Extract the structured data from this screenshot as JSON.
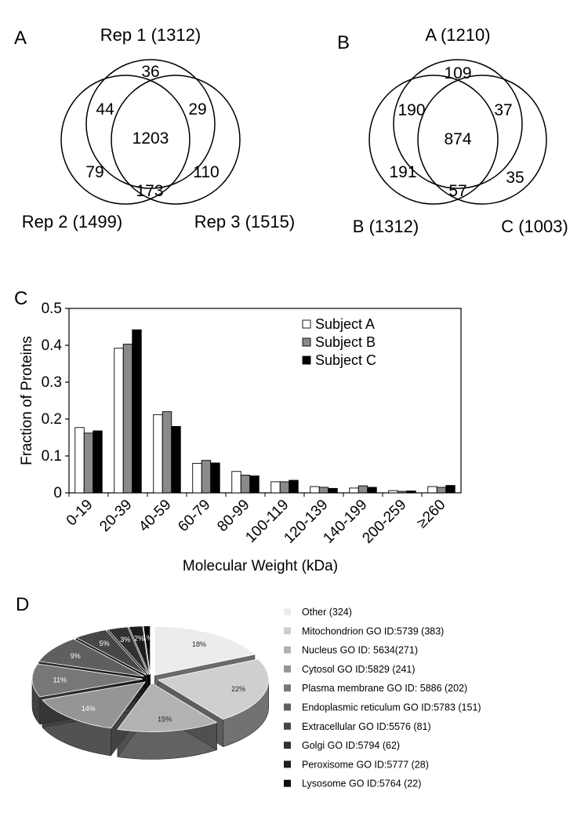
{
  "panels": {
    "a": {
      "letter": "A",
      "sets": [
        "Rep 1 (1312)",
        "Rep 2 (1499)",
        "Rep 3 (1515)"
      ],
      "regions": {
        "top_only": "36",
        "top_left": "44",
        "top_right": "29",
        "center": "1203",
        "left_only": "79",
        "bottom_middle": "173",
        "right_only": "110"
      }
    },
    "b": {
      "letter": "B",
      "sets": [
        "A (1210)",
        "B (1312)",
        "C (1003)"
      ],
      "regions": {
        "top_only": "109",
        "top_left": "190",
        "top_right": "37",
        "center": "874",
        "left_only": "191",
        "bottom_middle": "57",
        "right_only": "35"
      }
    },
    "c": {
      "letter": "C"
    },
    "d": {
      "letter": "D"
    }
  },
  "chart_data": [
    {
      "type": "bar",
      "title": "",
      "xlabel": "Molecular Weight (kDa)",
      "ylabel": "Fraction of Proteins",
      "ylim": [
        0,
        0.5
      ],
      "yticks": [
        "0",
        "0.1",
        "0.2",
        "0.3",
        "0.4",
        "0.5"
      ],
      "categories": [
        "0-19",
        "20-39",
        "40-59",
        "60-79",
        "80-99",
        "100-119",
        "120-139",
        "140-199",
        "200-259",
        "≥260"
      ],
      "series": [
        {
          "name": "Subject A",
          "color": "#ffffff",
          "values": [
            0.177,
            0.392,
            0.212,
            0.08,
            0.058,
            0.03,
            0.017,
            0.013,
            0.006,
            0.017
          ]
        },
        {
          "name": "Subject B",
          "color": "#8a8a8a",
          "values": [
            0.162,
            0.403,
            0.22,
            0.088,
            0.048,
            0.03,
            0.015,
            0.019,
            0.004,
            0.015
          ]
        },
        {
          "name": "Subject C",
          "color": "#000000",
          "values": [
            0.168,
            0.442,
            0.18,
            0.081,
            0.046,
            0.034,
            0.012,
            0.015,
            0.005,
            0.02
          ]
        }
      ],
      "grid": false,
      "legend_position": "top-right"
    },
    {
      "type": "pie",
      "slices": [
        {
          "label": "Other (324)",
          "value": 18,
          "pct": "18%",
          "color": "#ececec"
        },
        {
          "label": "Mitochondrion GO ID:5739 (383)",
          "value": 22,
          "pct": "22%",
          "color": "#cfcfcf"
        },
        {
          "label": "Nucleus GO ID: 5634(271)",
          "value": 15,
          "pct": "15%",
          "color": "#b2b2b2"
        },
        {
          "label": "Cytosol GO ID:5829 (241)",
          "value": 14,
          "pct": "14%",
          "color": "#959595"
        },
        {
          "label": "Plasma membrane GO ID: 5886 (202)",
          "value": 11,
          "pct": "11%",
          "color": "#777777"
        },
        {
          "label": "Endoplasmic reticulum GO ID:5783 (151)",
          "value": 9,
          "pct": "9%",
          "color": "#5f5f5f"
        },
        {
          "label": "Extracellular GO ID:5576 (81)",
          "value": 5,
          "pct": "5%",
          "color": "#474747"
        },
        {
          "label": "Golgi GO ID:5794 (62)",
          "value": 3,
          "pct": "3%",
          "color": "#323232"
        },
        {
          "label": "Peroxisome GO ID:5777 (28)",
          "value": 2,
          "pct": "2%",
          "color": "#1e1e1e"
        },
        {
          "label": "Lysosome GO ID:5764 (22)",
          "value": 1,
          "pct": "1%",
          "color": "#0a0a0a"
        }
      ],
      "style": "3d-exploded"
    }
  ]
}
